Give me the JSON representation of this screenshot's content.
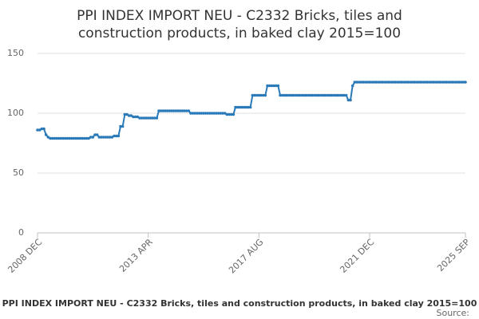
{
  "chart_data": {
    "type": "line",
    "title": [
      "PPI INDEX IMPORT NEU - C2332 Bricks, tiles and",
      "construction products, in baked clay 2015=100"
    ],
    "source": "Source:",
    "categories": [
      "2008 DEC",
      null,
      null,
      null,
      null,
      null,
      null,
      null,
      null,
      null,
      null,
      null,
      null,
      null,
      null,
      null,
      null,
      null,
      null,
      null,
      null,
      null,
      null,
      null,
      null,
      null,
      null,
      null,
      null,
      null,
      null,
      null,
      null,
      null,
      null,
      null,
      null,
      null,
      null,
      null,
      null,
      null,
      null,
      null,
      null,
      null,
      null,
      null,
      null,
      null,
      null,
      null,
      "2013 APR",
      null,
      null,
      null,
      null,
      null,
      null,
      null,
      null,
      null,
      null,
      null,
      null,
      null,
      null,
      null,
      null,
      null,
      null,
      null,
      null,
      null,
      null,
      null,
      null,
      null,
      null,
      null,
      null,
      null,
      null,
      null,
      null,
      null,
      null,
      null,
      null,
      null,
      null,
      null,
      null,
      null,
      null,
      null,
      null,
      null,
      null,
      null,
      null,
      null,
      null,
      null,
      "2017 AUG",
      null,
      null,
      null,
      null,
      null,
      null,
      null,
      null,
      null,
      null,
      null,
      null,
      null,
      null,
      null,
      null,
      null,
      null,
      null,
      null,
      null,
      null,
      null,
      null,
      null,
      null,
      null,
      null,
      null,
      null,
      null,
      null,
      null,
      null,
      null,
      null,
      null,
      null,
      null,
      null,
      null,
      null,
      null,
      null,
      null,
      null,
      null,
      null,
      null,
      null,
      null,
      "2021 DEC",
      null,
      null,
      null,
      null,
      null,
      null,
      null,
      null,
      null,
      null,
      null,
      null,
      null,
      null,
      null,
      null,
      null,
      null,
      null,
      null,
      null,
      null,
      null,
      null,
      null,
      null,
      null,
      null,
      null,
      null,
      null,
      null,
      null,
      null,
      null,
      null,
      null,
      null,
      null,
      null,
      null,
      null,
      null,
      null,
      "2025 SEP"
    ],
    "series": [
      {
        "name": "PPI INDEX IMPORT NEU - C2332 Bricks, tiles and construction products, in baked clay 2015=100",
        "color": "#2a7ab9",
        "values": [
          86,
          86,
          87,
          87,
          82,
          80,
          79,
          79,
          79,
          79,
          79,
          79,
          79,
          79,
          79,
          79,
          79,
          79,
          79,
          79,
          79,
          79,
          79,
          79,
          79,
          80,
          80,
          82,
          82,
          80,
          80,
          80,
          80,
          80,
          80,
          80,
          81,
          81,
          81,
          89,
          89,
          99,
          99,
          98,
          98,
          97,
          97,
          97,
          96,
          96,
          96,
          96,
          96,
          96,
          96,
          96,
          96,
          102,
          102,
          102,
          102,
          102,
          102,
          102,
          102,
          102,
          102,
          102,
          102,
          102,
          102,
          102,
          100,
          100,
          100,
          100,
          100,
          100,
          100,
          100,
          100,
          100,
          100,
          100,
          100,
          100,
          100,
          100,
          100,
          99,
          99,
          99,
          99,
          105,
          105,
          105,
          105,
          105,
          105,
          105,
          105,
          115,
          115,
          115,
          115,
          115,
          115,
          115,
          123,
          123,
          123,
          123,
          123,
          123,
          115,
          115,
          115,
          115,
          115,
          115,
          115,
          115,
          115,
          115,
          115,
          115,
          115,
          115,
          115,
          115,
          115,
          115,
          115,
          115,
          115,
          115,
          115,
          115,
          115,
          115,
          115,
          115,
          115,
          115,
          115,
          115,
          111,
          111,
          123,
          126,
          126,
          126,
          126,
          126,
          126,
          126,
          126,
          126,
          126,
          126,
          126,
          126,
          126,
          126,
          126,
          126,
          126,
          126,
          126,
          126,
          126,
          126,
          126,
          126,
          126,
          126,
          126,
          126,
          126,
          126,
          126,
          126,
          126,
          126,
          126,
          126,
          126,
          126,
          126,
          126,
          126,
          126,
          126,
          126,
          126,
          126,
          126,
          126,
          126,
          126,
          126,
          126
        ]
      }
    ],
    "ylim": [
      0,
      150
    ],
    "yticks": [
      0,
      50,
      100,
      150
    ],
    "grid": true
  }
}
